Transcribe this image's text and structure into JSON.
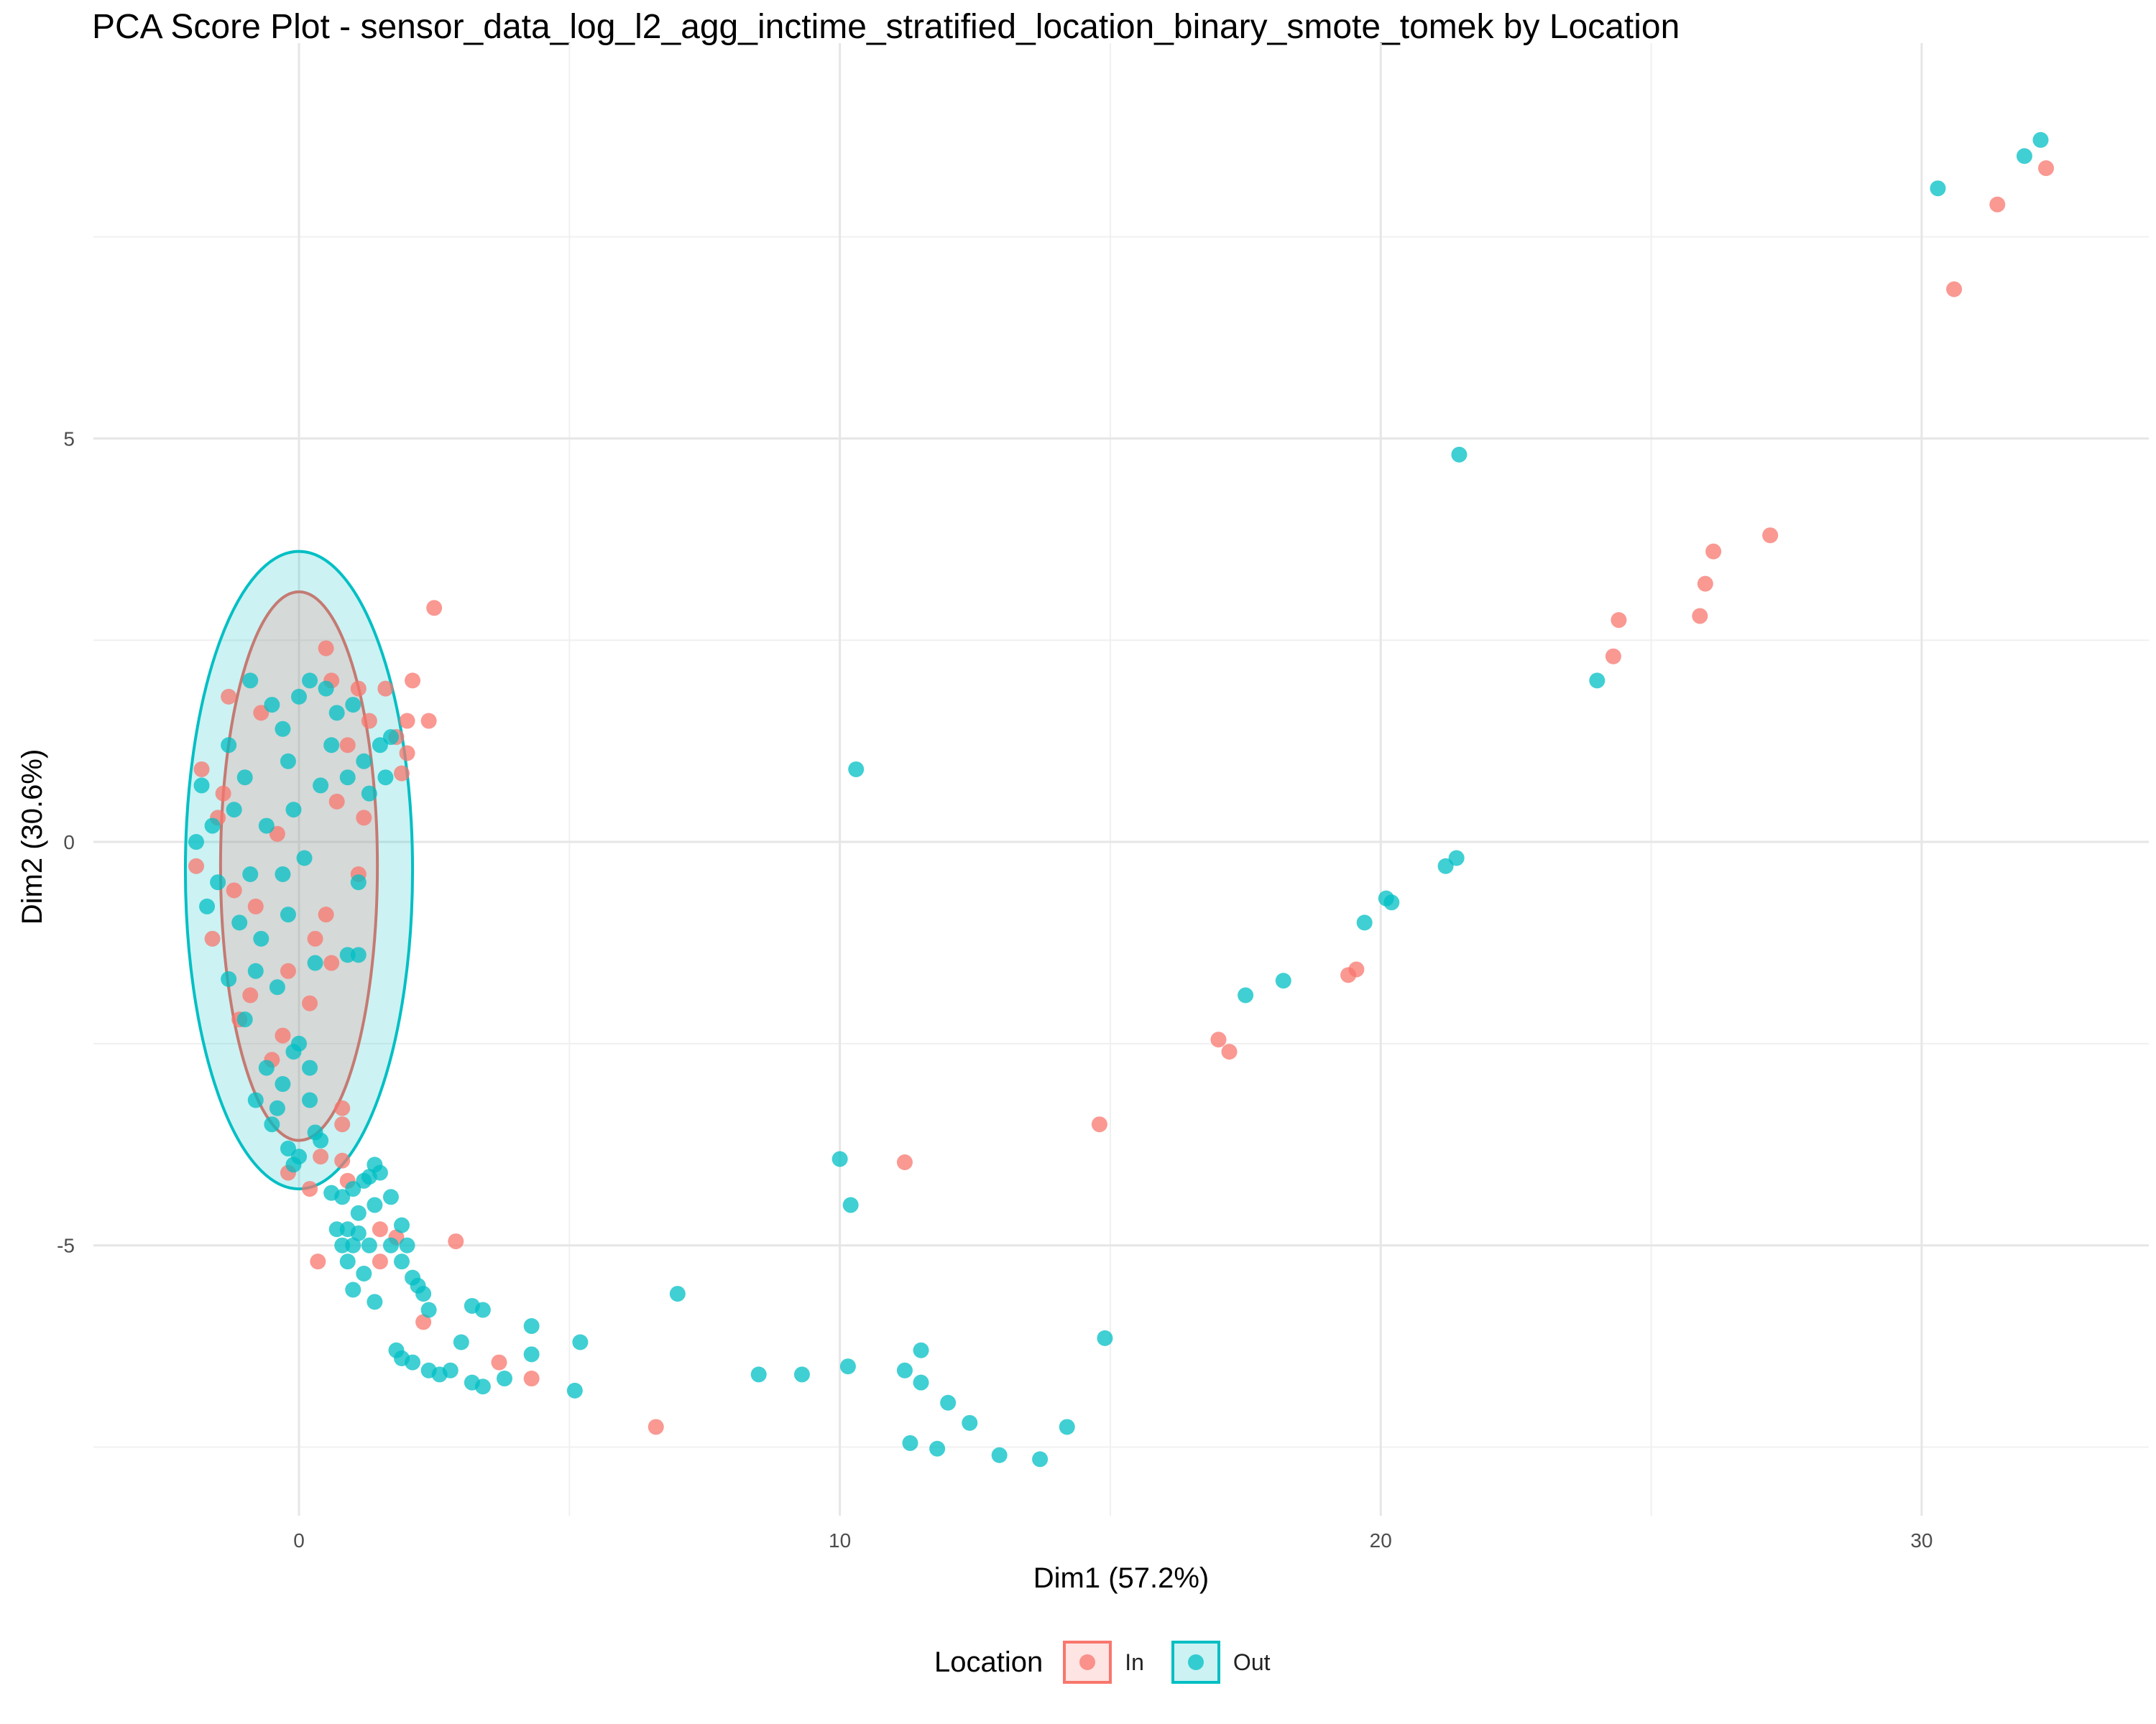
{
  "chart_data": {
    "type": "scatter",
    "title": "PCA Score Plot - sensor_data_log_l2_agg_inctime_stratified_location_binary_smote_tomek by Location",
    "xlabel": "Dim1 (57.2%)",
    "ylabel": "Dim2 (30.6%)",
    "xlim": [
      -3.8,
      34.2
    ],
    "ylim": [
      -8.35,
      9.9
    ],
    "x_ticks": [
      0,
      10,
      20,
      30
    ],
    "y_ticks": [
      -5,
      0,
      5
    ],
    "grid": true,
    "legend_title": "Location",
    "legend_placement": "bottom",
    "series": [
      {
        "name": "In",
        "color": "#F8766D",
        "ellipse": {
          "cx": 0.0,
          "cy": -0.3,
          "rx": 1.45,
          "ry": 3.4
        },
        "points": [
          [
            2.5,
            2.9
          ],
          [
            2.0,
            1.5
          ],
          [
            2.4,
            1.5
          ],
          [
            2.1,
            2.0
          ],
          [
            1.6,
            1.9
          ],
          [
            2.0,
            1.1
          ],
          [
            1.9,
            0.85
          ],
          [
            0.5,
            2.4
          ],
          [
            1.1,
            1.9
          ],
          [
            1.8,
            1.3
          ],
          [
            0.3,
            -1.2
          ],
          [
            0.6,
            -1.5
          ],
          [
            -0.3,
            -2.4
          ],
          [
            -0.5,
            -2.7
          ],
          [
            0.8,
            -3.3
          ],
          [
            0.8,
            -3.5
          ],
          [
            0.4,
            -3.9
          ],
          [
            -0.2,
            -4.1
          ],
          [
            0.2,
            -4.3
          ],
          [
            0.8,
            -3.95
          ],
          [
            0.9,
            -4.2
          ],
          [
            0.35,
            -5.2
          ],
          [
            1.5,
            -4.8
          ],
          [
            1.8,
            -4.9
          ],
          [
            1.5,
            -5.2
          ],
          [
            2.9,
            -4.95
          ],
          [
            2.3,
            -5.95
          ],
          [
            3.7,
            -6.45
          ],
          [
            4.3,
            -6.65
          ],
          [
            6.6,
            -7.25
          ],
          [
            11.2,
            -3.97
          ],
          [
            14.8,
            -3.5
          ],
          [
            17.0,
            -2.45
          ],
          [
            17.2,
            -2.6
          ],
          [
            19.4,
            -1.65
          ],
          [
            19.55,
            -1.58
          ],
          [
            24.3,
            2.3
          ],
          [
            24.4,
            2.75
          ],
          [
            25.9,
            2.8
          ],
          [
            26.0,
            3.2
          ],
          [
            26.15,
            3.6
          ],
          [
            27.2,
            3.8
          ],
          [
            30.6,
            6.85
          ],
          [
            31.4,
            7.9
          ],
          [
            32.3,
            8.35
          ],
          [
            -1.8,
            0.9
          ],
          [
            -1.5,
            0.3
          ],
          [
            -1.2,
            -0.6
          ],
          [
            -1.6,
            -1.2
          ],
          [
            -0.9,
            -1.9
          ],
          [
            0.7,
            0.5
          ],
          [
            1.1,
            -0.4
          ],
          [
            0.5,
            -0.9
          ],
          [
            -0.7,
            1.6
          ],
          [
            -1.3,
            1.8
          ],
          [
            0.9,
            1.2
          ],
          [
            -1.1,
            -2.2
          ],
          [
            -0.4,
            0.1
          ],
          [
            1.2,
            0.3
          ],
          [
            0.2,
            -2.0
          ],
          [
            -1.9,
            -0.3
          ],
          [
            0.6,
            2.0
          ],
          [
            -0.8,
            -0.8
          ],
          [
            -1.4,
            0.6
          ],
          [
            1.3,
            1.5
          ],
          [
            -0.2,
            -1.6
          ]
        ]
      },
      {
        "name": "Out",
        "color": "#00BFC4",
        "ellipse": {
          "cx": 0.0,
          "cy": -0.35,
          "rx": 2.1,
          "ry": 3.95
        },
        "points": [
          [
            32.2,
            8.7
          ],
          [
            31.9,
            8.5
          ],
          [
            30.3,
            8.1
          ],
          [
            21.45,
            4.8
          ],
          [
            24.0,
            2.0
          ],
          [
            10.3,
            0.9
          ],
          [
            21.4,
            -0.2
          ],
          [
            21.2,
            -0.3
          ],
          [
            20.1,
            -0.7
          ],
          [
            20.2,
            -0.75
          ],
          [
            19.7,
            -1.0
          ],
          [
            17.5,
            -1.9
          ],
          [
            18.2,
            -1.72
          ],
          [
            10.0,
            -3.93
          ],
          [
            10.2,
            -4.5
          ],
          [
            7.0,
            -5.6
          ],
          [
            14.9,
            -6.15
          ],
          [
            11.5,
            -6.3
          ],
          [
            10.15,
            -6.5
          ],
          [
            11.2,
            -6.55
          ],
          [
            11.5,
            -6.7
          ],
          [
            12.0,
            -6.95
          ],
          [
            12.4,
            -7.2
          ],
          [
            14.2,
            -7.25
          ],
          [
            11.3,
            -7.45
          ],
          [
            11.8,
            -7.52
          ],
          [
            12.95,
            -7.6
          ],
          [
            13.7,
            -7.65
          ],
          [
            8.5,
            -6.6
          ],
          [
            9.3,
            -6.6
          ],
          [
            5.2,
            -6.2
          ],
          [
            5.1,
            -6.8
          ],
          [
            4.3,
            -6.35
          ],
          [
            4.3,
            -6.0
          ],
          [
            3.4,
            -5.8
          ],
          [
            3.2,
            -5.75
          ],
          [
            3.0,
            -6.2
          ],
          [
            2.4,
            -5.8
          ],
          [
            2.3,
            -5.6
          ],
          [
            2.2,
            -5.5
          ],
          [
            2.1,
            -5.4
          ],
          [
            1.8,
            -6.3
          ],
          [
            1.9,
            -6.4
          ],
          [
            2.1,
            -6.45
          ],
          [
            2.4,
            -6.55
          ],
          [
            2.6,
            -6.6
          ],
          [
            2.8,
            -6.55
          ],
          [
            3.2,
            -6.7
          ],
          [
            3.4,
            -6.75
          ],
          [
            3.8,
            -6.65
          ],
          [
            1.4,
            -5.7
          ],
          [
            1.2,
            -5.35
          ],
          [
            1.0,
            -5.55
          ],
          [
            0.9,
            -5.2
          ],
          [
            0.8,
            -5.0
          ],
          [
            1.0,
            -5.0
          ],
          [
            1.1,
            -4.85
          ],
          [
            0.9,
            -4.8
          ],
          [
            0.7,
            -4.8
          ],
          [
            1.4,
            -4.5
          ],
          [
            1.7,
            -4.4
          ],
          [
            1.9,
            -4.75
          ],
          [
            2.0,
            -5.0
          ],
          [
            1.9,
            -5.2
          ],
          [
            1.7,
            -5.0
          ],
          [
            1.2,
            -4.2
          ],
          [
            1.4,
            -4.0
          ],
          [
            1.0,
            -4.3
          ],
          [
            1.5,
            -4.1
          ],
          [
            0.8,
            -4.4
          ],
          [
            0.6,
            -4.35
          ],
          [
            1.3,
            -4.15
          ],
          [
            1.1,
            -4.6
          ],
          [
            1.3,
            -5.0
          ],
          [
            -0.2,
            -3.8
          ],
          [
            0.0,
            -3.9
          ],
          [
            0.3,
            -3.6
          ],
          [
            -0.1,
            -4.0
          ],
          [
            -0.4,
            -3.3
          ],
          [
            -0.8,
            -3.2
          ],
          [
            -0.5,
            -3.5
          ],
          [
            0.2,
            -3.2
          ],
          [
            0.4,
            -3.7
          ],
          [
            -0.6,
            -2.8
          ],
          [
            -0.1,
            -2.6
          ],
          [
            0.0,
            -2.5
          ],
          [
            -0.3,
            -3.0
          ],
          [
            0.2,
            -2.8
          ],
          [
            1.1,
            -0.5
          ],
          [
            0.9,
            -1.4
          ],
          [
            1.1,
            -1.4
          ],
          [
            -1.8,
            0.7
          ],
          [
            -1.9,
            0.0
          ],
          [
            -1.7,
            -0.8
          ],
          [
            -1.3,
            -1.7
          ],
          [
            -1.0,
            -2.2
          ],
          [
            -0.5,
            1.7
          ],
          [
            0.0,
            1.8
          ],
          [
            0.7,
            1.6
          ],
          [
            1.2,
            1.0
          ],
          [
            1.5,
            1.2
          ],
          [
            1.6,
            0.8
          ],
          [
            1.7,
            1.3
          ],
          [
            0.9,
            0.8
          ],
          [
            0.4,
            0.7
          ],
          [
            -0.9,
            2.0
          ],
          [
            0.2,
            2.0
          ],
          [
            -0.3,
            1.4
          ],
          [
            0.6,
            1.2
          ],
          [
            -1.2,
            0.4
          ],
          [
            -0.6,
            0.2
          ],
          [
            -0.9,
            -0.4
          ],
          [
            -0.2,
            -0.9
          ],
          [
            -0.7,
            -1.2
          ],
          [
            -1.1,
            -1.0
          ],
          [
            -0.4,
            -1.8
          ],
          [
            0.3,
            -1.5
          ],
          [
            -1.5,
            -0.5
          ],
          [
            -1.0,
            0.8
          ],
          [
            -0.1,
            0.4
          ],
          [
            1.0,
            1.7
          ],
          [
            0.5,
            1.9
          ],
          [
            -0.3,
            -0.4
          ],
          [
            -1.3,
            1.2
          ],
          [
            0.1,
            -0.2
          ],
          [
            -0.8,
            -1.6
          ],
          [
            1.3,
            0.6
          ],
          [
            -1.6,
            0.2
          ],
          [
            -0.2,
            1.0
          ]
        ]
      }
    ]
  }
}
